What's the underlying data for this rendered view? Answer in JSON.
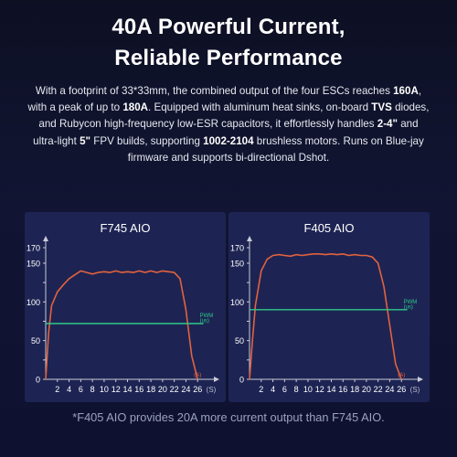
{
  "header": {
    "title_line1": "40A Powerful Current,",
    "title_line2": "Reliable Performance"
  },
  "description": {
    "s1": "With a footprint of 33*33mm, the combined output of the four ESCs reaches ",
    "b1": "160A",
    "s2": ", with a peak of up to ",
    "b2": "180A",
    "s3": ". Equipped with aluminum heat sinks, on-board ",
    "b3": "TVS",
    "s4": " diodes, and Rubycon high-frequency low-ESR capacitors, it effortlessly handles ",
    "b4": "2-4\"",
    "s5": " and ultra-light ",
    "b5": "5\"",
    "s6": " FPV builds, supporting ",
    "b6": "1002-2104",
    "s7": " brushless motors. Runs on Blue-jay firmware and supports bi-directional Dshot."
  },
  "footnote": "*F405 AIO provides 20A more current output than F745 AIO.",
  "colors": {
    "current": "#e2623f",
    "pwm": "#2ec98a",
    "axis": "#c9cbd6",
    "panel": "#1d2453"
  },
  "chart_data": [
    {
      "type": "line",
      "title": "F745 AIO",
      "x_unit": "(S)",
      "x_ticks": [
        2,
        4,
        6,
        8,
        10,
        12,
        14,
        16,
        18,
        20,
        22,
        24,
        26
      ],
      "y_ticks": [
        0,
        25,
        50,
        75,
        100,
        125,
        150,
        170
      ],
      "y_tick_labels": [
        "0",
        "",
        "50",
        "",
        "100",
        "",
        "150",
        "170"
      ],
      "xlim": [
        0,
        28
      ],
      "ylim": [
        0,
        170
      ],
      "series": [
        {
          "name": "(A)",
          "color": "#e2623f",
          "x": [
            0,
            0.5,
            1,
            2,
            3,
            4,
            5,
            6,
            7,
            8,
            9,
            10,
            11,
            12,
            13,
            14,
            15,
            16,
            17,
            18,
            19,
            20,
            21,
            22,
            23,
            24,
            25,
            26
          ],
          "y": [
            0,
            60,
            95,
            113,
            122,
            130,
            135,
            140,
            138,
            136,
            138,
            139,
            138,
            140,
            138,
            139,
            138,
            140,
            138,
            140,
            138,
            140,
            139,
            138,
            130,
            90,
            30,
            0
          ]
        },
        {
          "name": "PWM (us)",
          "color": "#2ec98a",
          "x": [
            0,
            27
          ],
          "y": [
            72,
            72
          ]
        }
      ]
    },
    {
      "type": "line",
      "title": "F405 AIO",
      "x_unit": "(S)",
      "x_ticks": [
        2,
        4,
        6,
        8,
        10,
        12,
        14,
        16,
        18,
        20,
        22,
        24,
        26
      ],
      "y_ticks": [
        0,
        25,
        50,
        75,
        100,
        125,
        150,
        170
      ],
      "y_tick_labels": [
        "0",
        "",
        "50",
        "",
        "100",
        "",
        "150",
        "170"
      ],
      "xlim": [
        0,
        28
      ],
      "ylim": [
        0,
        170
      ],
      "series": [
        {
          "name": "(A)",
          "color": "#e2623f",
          "x": [
            0,
            0.5,
            1,
            2,
            3,
            4,
            5,
            6,
            7,
            8,
            9,
            10,
            11,
            12,
            13,
            14,
            15,
            16,
            17,
            18,
            19,
            20,
            21,
            22,
            23,
            24,
            25,
            26
          ],
          "y": [
            0,
            50,
            95,
            140,
            155,
            160,
            161,
            160,
            159,
            161,
            160,
            161,
            162,
            162,
            161,
            162,
            161,
            162,
            160,
            161,
            160,
            160,
            158,
            150,
            120,
            70,
            20,
            0
          ]
        },
        {
          "name": "PWM (us)",
          "color": "#2ec98a",
          "x": [
            0,
            27
          ],
          "y": [
            90,
            90
          ]
        }
      ]
    }
  ]
}
